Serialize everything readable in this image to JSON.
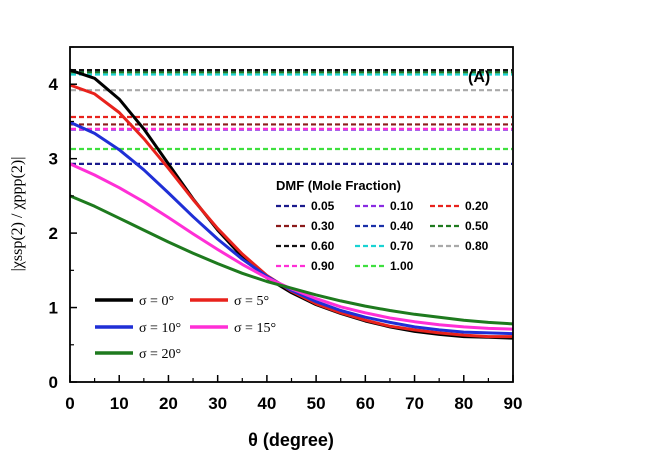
{
  "chart_data": {
    "type": "line",
    "panel_label": "(A)",
    "xlabel": "θ (degree)",
    "ylabel": "|χssp(2) / χppp(2)|",
    "xlim": [
      0,
      90
    ],
    "ylim": [
      0,
      4.5
    ],
    "x_ticks": [
      "0",
      "10",
      "20",
      "30",
      "40",
      "50",
      "60",
      "70",
      "80",
      "90"
    ],
    "y_ticks": [
      "0",
      "1",
      "2",
      "3",
      "4"
    ],
    "legend_dmf_title": "DMF (Mole Fraction)",
    "reference_lines": [
      {
        "name": "0.05",
        "y": 2.93,
        "color": "#1a1a8c"
      },
      {
        "name": "0.10",
        "y": 3.39,
        "color": "#8a2be2"
      },
      {
        "name": "0.20",
        "y": 3.56,
        "color": "#e8221c"
      },
      {
        "name": "0.30",
        "y": 3.46,
        "color": "#8b1a1a"
      },
      {
        "name": "0.40",
        "y": 4.17,
        "color": "#1a2fa8"
      },
      {
        "name": "0.50",
        "y": 4.16,
        "color": "#1e7a1e"
      },
      {
        "name": "0.60",
        "y": 4.19,
        "color": "#111111"
      },
      {
        "name": "0.70",
        "y": 4.13,
        "color": "#19d3d3"
      },
      {
        "name": "0.80",
        "y": 3.92,
        "color": "#a9a9a9"
      },
      {
        "name": "0.90",
        "y": 3.4,
        "color": "#ff2fd6"
      },
      {
        "name": "1.00",
        "y": 3.13,
        "color": "#3ee03e"
      }
    ],
    "x": [
      0,
      5,
      10,
      15,
      20,
      25,
      30,
      35,
      40,
      45,
      50,
      55,
      60,
      65,
      70,
      75,
      80,
      85,
      90
    ],
    "series": [
      {
        "name": "σ = 0°",
        "color": "#000000",
        "values": [
          4.19,
          4.08,
          3.8,
          3.4,
          2.93,
          2.46,
          2.04,
          1.68,
          1.4,
          1.2,
          1.04,
          0.92,
          0.82,
          0.74,
          0.68,
          0.64,
          0.61,
          0.6,
          0.59
        ]
      },
      {
        "name": "σ = 5°",
        "color": "#e8221c",
        "values": [
          3.99,
          3.87,
          3.62,
          3.27,
          2.87,
          2.45,
          2.06,
          1.72,
          1.43,
          1.22,
          1.05,
          0.93,
          0.83,
          0.75,
          0.7,
          0.66,
          0.63,
          0.61,
          0.61
        ]
      },
      {
        "name": "σ = 10°",
        "color": "#1f2fd6",
        "values": [
          3.49,
          3.34,
          3.12,
          2.85,
          2.54,
          2.22,
          1.92,
          1.65,
          1.42,
          1.23,
          1.08,
          0.96,
          0.87,
          0.8,
          0.74,
          0.7,
          0.67,
          0.66,
          0.65
        ]
      },
      {
        "name": "σ = 15°",
        "color": "#ff2fd6",
        "values": [
          2.93,
          2.78,
          2.61,
          2.42,
          2.21,
          1.99,
          1.78,
          1.58,
          1.4,
          1.25,
          1.12,
          1.01,
          0.93,
          0.86,
          0.81,
          0.77,
          0.74,
          0.72,
          0.71
        ]
      },
      {
        "name": "σ = 20°",
        "color": "#1e7a1e",
        "values": [
          2.5,
          2.36,
          2.2,
          2.04,
          1.88,
          1.73,
          1.59,
          1.46,
          1.35,
          1.26,
          1.17,
          1.09,
          1.02,
          0.96,
          0.91,
          0.87,
          0.83,
          0.8,
          0.78
        ]
      }
    ]
  }
}
